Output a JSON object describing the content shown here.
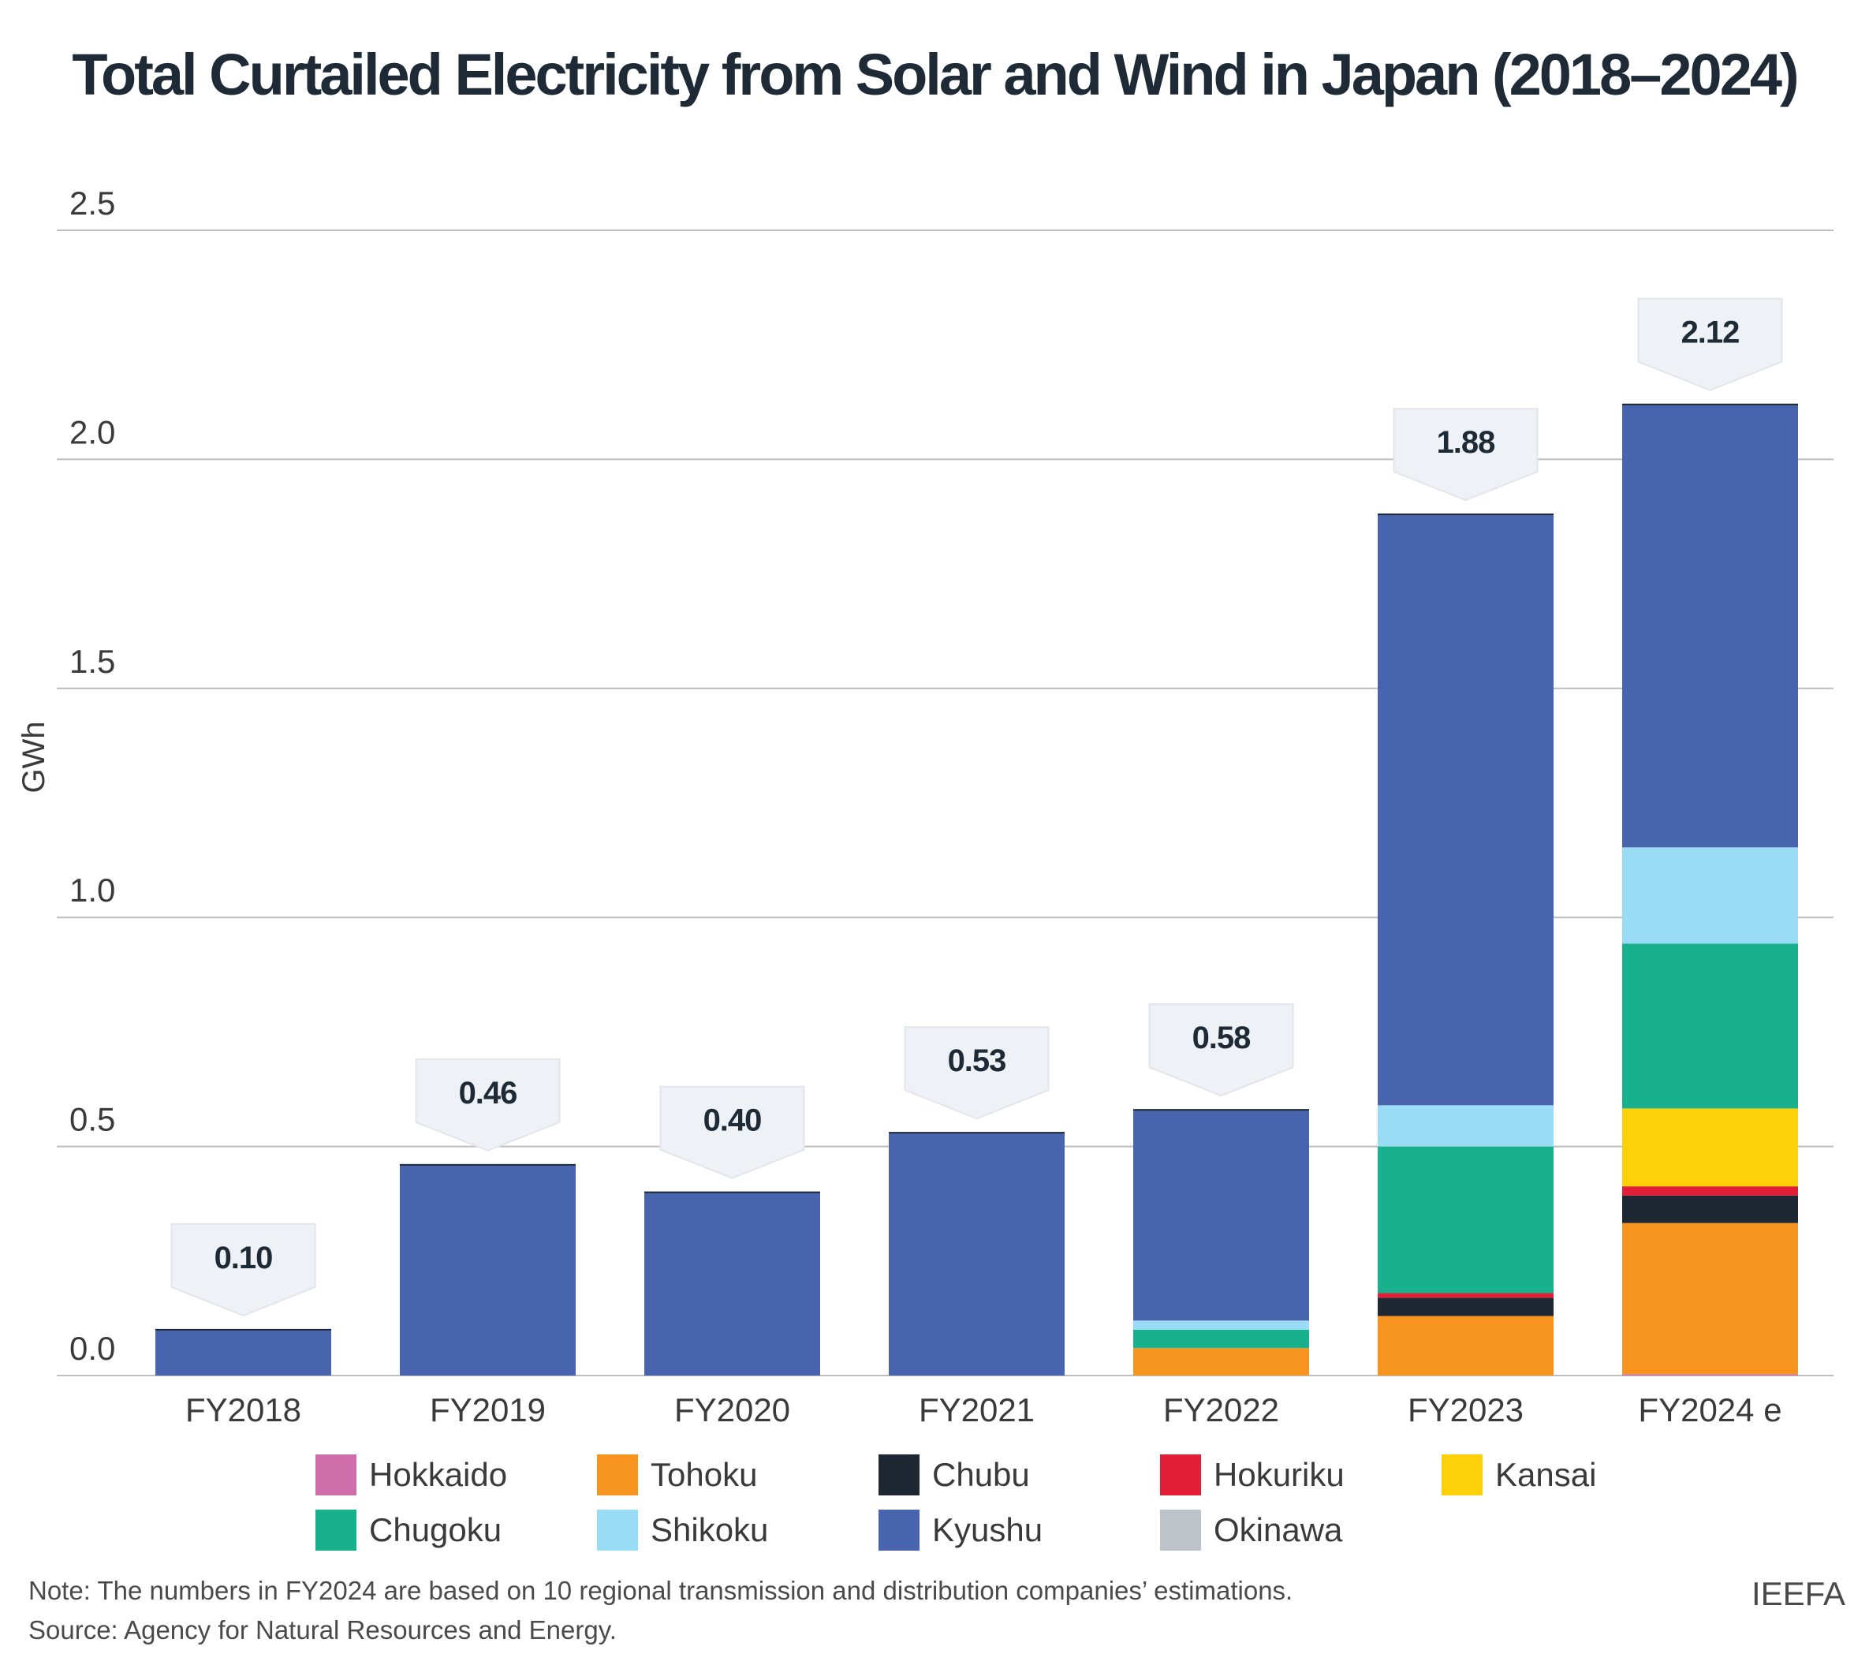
{
  "title": "Total Curtailed Electricity from Solar and Wind in Japan (2018–2024)",
  "chart_data": {
    "type": "bar",
    "stacked": true,
    "title": "Total Curtailed Electricity from Solar and Wind in Japan (2018–2024)",
    "xlabel": "",
    "ylabel": "GWh",
    "ylim": [
      0,
      2.5
    ],
    "yticks": [
      0.0,
      0.5,
      1.0,
      1.5,
      2.0,
      2.5
    ],
    "ytick_labels": [
      "0.0",
      "0.5",
      "1.0",
      "1.5",
      "2.0",
      "2.5"
    ],
    "grid": true,
    "legend_position": "bottom",
    "categories": [
      "FY2018",
      "FY2019",
      "FY2020",
      "FY2021",
      "FY2022",
      "FY2023",
      "FY2024 e"
    ],
    "totals": [
      0.1,
      0.46,
      0.4,
      0.53,
      0.58,
      1.88,
      2.12
    ],
    "total_labels": [
      "0.10",
      "0.46",
      "0.40",
      "0.53",
      "0.58",
      "1.88",
      "2.12"
    ],
    "series": [
      {
        "name": "Hokkaido",
        "color": "#cf6eab",
        "values": [
          0,
          0,
          0,
          0,
          0,
          0,
          0.003
        ]
      },
      {
        "name": "Tohoku",
        "color": "#f7941f",
        "values": [
          0,
          0,
          0,
          0,
          0.06,
          0.13,
          0.33
        ]
      },
      {
        "name": "Chubu",
        "color": "#1e2832",
        "values": [
          0,
          0,
          0,
          0,
          0,
          0.04,
          0.06
        ]
      },
      {
        "name": "Hokuriku",
        "color": "#e21f36",
        "values": [
          0,
          0,
          0,
          0,
          0,
          0.01,
          0.02
        ]
      },
      {
        "name": "Kansai",
        "color": "#fcd10a",
        "values": [
          0,
          0,
          0,
          0,
          0,
          0,
          0.17
        ]
      },
      {
        "name": "Chugoku",
        "color": "#17b18d",
        "values": [
          0,
          0,
          0,
          0,
          0.04,
          0.32,
          0.36
        ]
      },
      {
        "name": "Shikoku",
        "color": "#9adcf6",
        "values": [
          0,
          0,
          0,
          0,
          0.02,
          0.09,
          0.21
        ]
      },
      {
        "name": "Kyushu",
        "color": "#4964ae",
        "values": [
          0.1,
          0.46,
          0.4,
          0.53,
          0.46,
          1.29,
          0.967
        ]
      },
      {
        "name": "Okinawa",
        "color": "#bec3ca",
        "values": [
          0,
          0,
          0,
          0,
          0,
          0,
          0
        ]
      }
    ]
  },
  "legend": {
    "row1": [
      "Hokkaido",
      "Tohoku",
      "Chubu",
      "Hokuriku",
      "Kansai"
    ],
    "row2": [
      "Chugoku",
      "Shikoku",
      "Kyushu",
      "Okinawa"
    ]
  },
  "footer": {
    "note": "Note: The numbers in FY2024 are based on 10 regional  transmission and distribution companies’ estimations.",
    "source": "Source: Agency for Natural Resources and Energy.",
    "brand": "IEEFA"
  }
}
